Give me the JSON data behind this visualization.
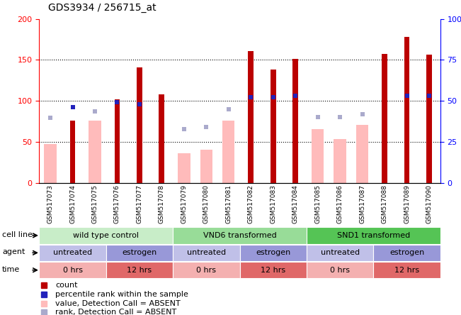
{
  "title": "GDS3934 / 256715_at",
  "samples": [
    "GSM517073",
    "GSM517074",
    "GSM517075",
    "GSM517076",
    "GSM517077",
    "GSM517078",
    "GSM517079",
    "GSM517080",
    "GSM517081",
    "GSM517082",
    "GSM517083",
    "GSM517084",
    "GSM517085",
    "GSM517086",
    "GSM517087",
    "GSM517088",
    "GSM517089",
    "GSM517090"
  ],
  "count_values": [
    0,
    76,
    0,
    102,
    141,
    108,
    0,
    0,
    0,
    161,
    138,
    151,
    0,
    0,
    0,
    157,
    178,
    156
  ],
  "value_absent": [
    47,
    0,
    76,
    0,
    0,
    0,
    36,
    40,
    76,
    0,
    0,
    0,
    65,
    53,
    71,
    0,
    0,
    0
  ],
  "rank_values_left": [
    79,
    0,
    87,
    0,
    0,
    0,
    65,
    68,
    90,
    0,
    0,
    0,
    80,
    80,
    84,
    0,
    0,
    0
  ],
  "percentile_rank_right": [
    0,
    46,
    0,
    49,
    48,
    0,
    0,
    0,
    0,
    52,
    52,
    53,
    0,
    0,
    0,
    0,
    53,
    53
  ],
  "has_count": [
    false,
    true,
    false,
    true,
    true,
    true,
    false,
    false,
    false,
    true,
    true,
    true,
    false,
    false,
    false,
    true,
    true,
    true
  ],
  "has_value_absent": [
    true,
    false,
    true,
    false,
    false,
    false,
    true,
    true,
    true,
    false,
    false,
    false,
    true,
    true,
    true,
    false,
    false,
    false
  ],
  "has_rank_absent": [
    true,
    false,
    true,
    false,
    false,
    false,
    true,
    true,
    true,
    false,
    false,
    false,
    true,
    true,
    true,
    false,
    false,
    false
  ],
  "has_percentile": [
    false,
    true,
    false,
    true,
    true,
    false,
    false,
    false,
    false,
    true,
    true,
    true,
    false,
    false,
    false,
    false,
    true,
    true
  ],
  "cell_line_groups": [
    {
      "label": "wild type control",
      "start": 0,
      "end": 5,
      "color": "#c8edc8"
    },
    {
      "label": "VND6 transformed",
      "start": 6,
      "end": 11,
      "color": "#98dc98"
    },
    {
      "label": "SND1 transformed",
      "start": 12,
      "end": 17,
      "color": "#55c455"
    }
  ],
  "agent_groups": [
    {
      "label": "untreated",
      "start": 0,
      "end": 2,
      "color": "#c0c0e8"
    },
    {
      "label": "estrogen",
      "start": 3,
      "end": 5,
      "color": "#9898d8"
    },
    {
      "label": "untreated",
      "start": 6,
      "end": 8,
      "color": "#c0c0e8"
    },
    {
      "label": "estrogen",
      "start": 9,
      "end": 11,
      "color": "#9898d8"
    },
    {
      "label": "untreated",
      "start": 12,
      "end": 14,
      "color": "#c0c0e8"
    },
    {
      "label": "estrogen",
      "start": 15,
      "end": 17,
      "color": "#9898d8"
    }
  ],
  "time_groups": [
    {
      "label": "0 hrs",
      "start": 0,
      "end": 2,
      "color": "#f4b0b0"
    },
    {
      "label": "12 hrs",
      "start": 3,
      "end": 5,
      "color": "#e06868"
    },
    {
      "label": "0 hrs",
      "start": 6,
      "end": 8,
      "color": "#f4b0b0"
    },
    {
      "label": "12 hrs",
      "start": 9,
      "end": 11,
      "color": "#e06868"
    },
    {
      "label": "0 hrs",
      "start": 12,
      "end": 14,
      "color": "#f4b0b0"
    },
    {
      "label": "12 hrs",
      "start": 15,
      "end": 17,
      "color": "#e06868"
    }
  ],
  "ylim_left": [
    0,
    200
  ],
  "ylim_right": [
    0,
    100
  ],
  "yticks_left": [
    0,
    50,
    100,
    150,
    200
  ],
  "yticks_right": [
    0,
    25,
    50,
    75,
    100
  ],
  "count_color": "#bb0000",
  "value_absent_color": "#ffbbbb",
  "rank_absent_color": "#aaaacc",
  "percentile_color": "#2222bb",
  "bg_color": "#ffffff"
}
